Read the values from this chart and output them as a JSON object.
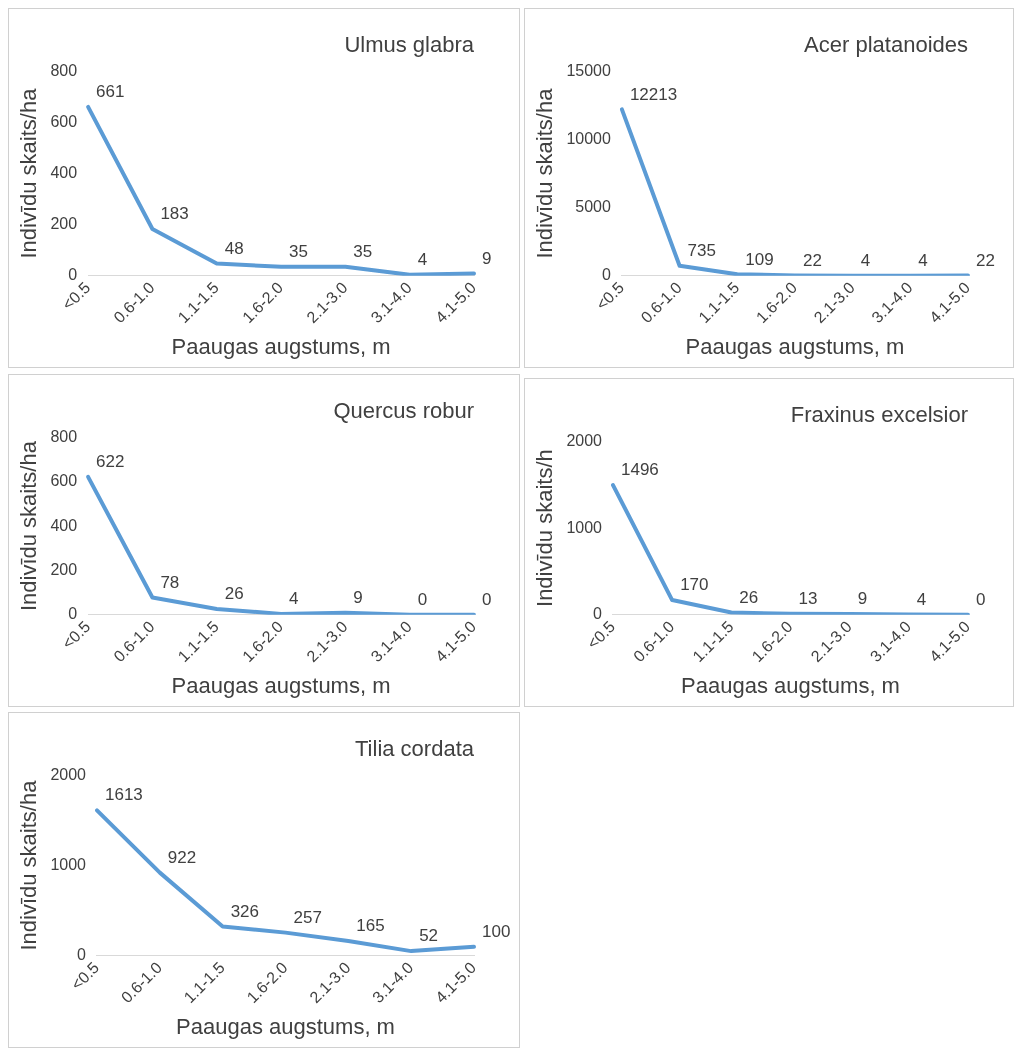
{
  "chart_data": [
    {
      "type": "line",
      "title": "Ulmus glabra",
      "xlabel": "Paaugas augstums, m",
      "ylabel": "Indivīdu skaits/ha",
      "categories": [
        "<0.5",
        "0.6-1.0",
        "1.1-1.5",
        "1.6-2.0",
        "2.1-3.0",
        "3.1-4.0",
        "4.1-5.0"
      ],
      "series": [
        {
          "color": "#5b9bd5",
          "values": [
            661,
            183,
            48,
            35,
            35,
            4,
            9
          ]
        }
      ],
      "ylim": [
        0,
        800
      ],
      "yticks": [
        0,
        200,
        400,
        600,
        800
      ],
      "data_labels": true,
      "marker": "none",
      "grid": false
    },
    {
      "type": "line",
      "title": "Acer platanoides",
      "xlabel": "Paaugas augstums, m",
      "ylabel": "Indivīdu skaits/ha",
      "categories": [
        "<0.5",
        "0.6-1.0",
        "1.1-1.5",
        "1.6-2.0",
        "2.1-3.0",
        "3.1-4.0",
        "4.1-5.0"
      ],
      "series": [
        {
          "color": "#5b9bd5",
          "values": [
            12213,
            735,
            109,
            22,
            4,
            4,
            22
          ]
        }
      ],
      "ylim": [
        0,
        15000
      ],
      "yticks": [
        0,
        5000,
        10000,
        15000
      ],
      "data_labels": true,
      "marker": "none",
      "grid": false
    },
    {
      "type": "line",
      "title": "Quercus robur",
      "xlabel": "Paaugas augstums, m",
      "ylabel": "Indivīdu skaits/ha",
      "categories": [
        "<0.5",
        "0.6-1.0",
        "1.1-1.5",
        "1.6-2.0",
        "2.1-3.0",
        "3.1-4.0",
        "4.1-5.0"
      ],
      "series": [
        {
          "color": "#5b9bd5",
          "values": [
            622,
            78,
            26,
            4,
            9,
            0,
            0
          ]
        }
      ],
      "ylim": [
        0,
        800
      ],
      "yticks": [
        0,
        200,
        400,
        600,
        800
      ],
      "data_labels": true,
      "marker": "none",
      "grid": false
    },
    {
      "type": "line",
      "title": "Fraxinus excelsior",
      "xlabel": "Paaugas augstums, m",
      "ylabel": "Indivīdu skaits/h",
      "categories": [
        "<0.5",
        "0.6-1.0",
        "1.1-1.5",
        "1.6-2.0",
        "2.1-3.0",
        "3.1-4.0",
        "4.1-5.0"
      ],
      "series": [
        {
          "color": "#5b9bd5",
          "values": [
            1496,
            170,
            26,
            13,
            9,
            4,
            0
          ]
        }
      ],
      "ylim": [
        0,
        2000
      ],
      "yticks": [
        0,
        1000,
        2000
      ],
      "data_labels": true,
      "marker": "none",
      "grid": false
    },
    {
      "type": "line",
      "title": "Tilia cordata",
      "xlabel": "Paaugas augstums, m",
      "ylabel": "Indivīdu skaits/ha",
      "categories": [
        "<0.5",
        "0.6-1.0",
        "1.1-1.5",
        "1.6-2.0",
        "2.1-3.0",
        "3.1-4.0",
        "4.1-5.0"
      ],
      "series": [
        {
          "color": "#5b9bd5",
          "values": [
            1613,
            922,
            326,
            257,
            165,
            52,
            100
          ]
        }
      ],
      "ylim": [
        0,
        2000
      ],
      "yticks": [
        0,
        1000,
        2000
      ],
      "data_labels": true,
      "marker": "none",
      "grid": false
    }
  ]
}
